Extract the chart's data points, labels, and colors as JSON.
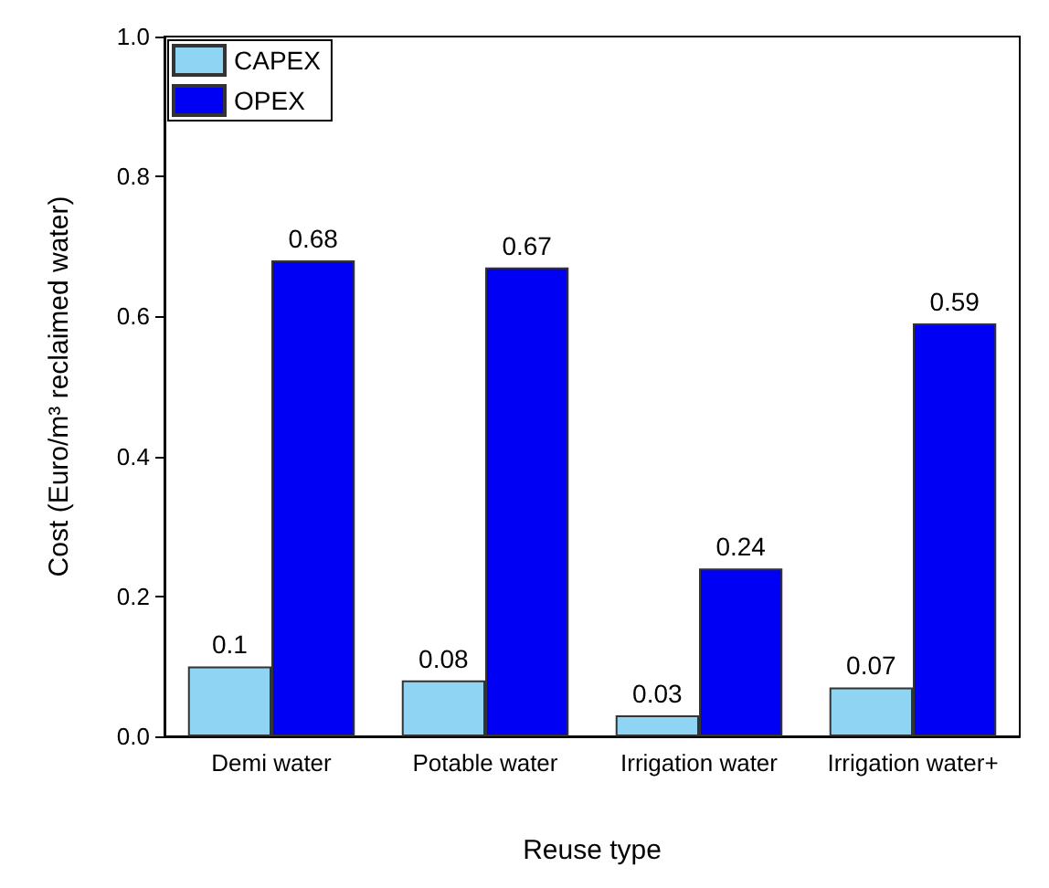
{
  "chart_data": {
    "type": "bar",
    "xlabel": "Reuse type",
    "ylabel": "Cost (Euro/m³ reclaimed water)",
    "categories": [
      "Demi water",
      "Potable water",
      "Irrigation water",
      "Irrigation water+"
    ],
    "series": [
      {
        "name": "CAPEX",
        "color": "#8fd4f2",
        "values": [
          0.1,
          0.08,
          0.03,
          0.07
        ]
      },
      {
        "name": "OPEX",
        "color": "#0000f5",
        "values": [
          0.68,
          0.67,
          0.24,
          0.59
        ]
      }
    ],
    "ylim": [
      0,
      1
    ],
    "yticks": [
      {
        "value": 0,
        "label": "0.0"
      },
      {
        "value": 0.2,
        "label": "0.2"
      },
      {
        "value": 0.4,
        "label": "0.4"
      },
      {
        "value": 0.6,
        "label": "0.6"
      },
      {
        "value": 0.8,
        "label": "0.8"
      },
      {
        "value": 1,
        "label": "1.0"
      }
    ],
    "data_labels": true,
    "legend": "top left",
    "grid": false
  }
}
